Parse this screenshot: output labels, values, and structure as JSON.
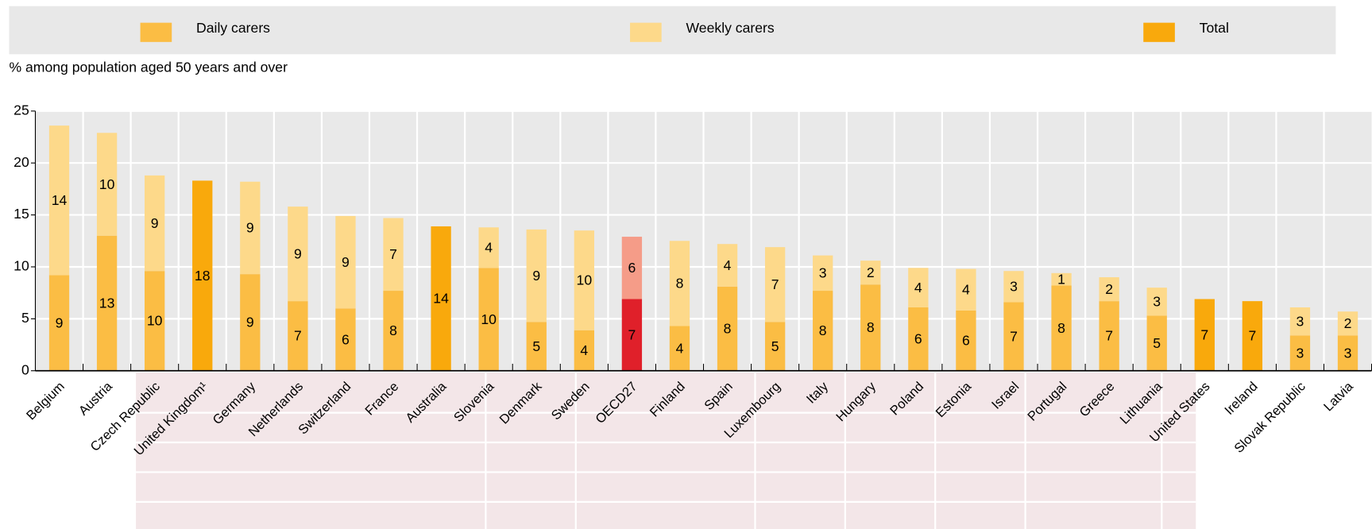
{
  "chart_data": {
    "type": "stacked_bar",
    "subtitle": "% among population aged 50 years and over",
    "categories": [
      "Belgium",
      "Austria",
      "Czech Republic",
      "United Kingdom¹",
      "Germany",
      "Netherlands",
      "Switzerland",
      "France",
      "Australia",
      "Slovenia",
      "Denmark",
      "Sweden",
      "OECD27",
      "Finland",
      "Spain",
      "Luxembourg",
      "Italy",
      "Hungary",
      "Poland",
      "Estonia",
      "Israel",
      "Portugal",
      "Greece",
      "Lithuania",
      "United States",
      "Ireland",
      "Slovak Republic",
      "Latvia"
    ],
    "series": [
      {
        "name": "Daily carers",
        "color": "#fbbd44",
        "highlight_color": "#e0202a",
        "values": [
          9.2,
          13.0,
          9.6,
          null,
          9.3,
          6.7,
          6.0,
          7.7,
          null,
          9.9,
          4.7,
          3.9,
          6.9,
          4.3,
          8.1,
          4.7,
          7.7,
          8.3,
          6.1,
          5.8,
          6.6,
          8.2,
          6.7,
          5.3,
          null,
          null,
          3.4,
          3.4
        ],
        "value_labels": [
          "9",
          "13",
          "10",
          null,
          "9",
          "7",
          "6",
          "8",
          null,
          "10",
          "5",
          "4",
          "7",
          "4",
          "8",
          "5",
          "8",
          "8",
          "6",
          "6",
          "7",
          "8",
          "7",
          "5",
          null,
          null,
          "3",
          "3"
        ]
      },
      {
        "name": "Weekly carers",
        "color": "#fdd98a",
        "highlight_color": "#f59c88",
        "values": [
          14.4,
          9.9,
          9.2,
          null,
          8.9,
          9.1,
          8.9,
          7.0,
          null,
          3.9,
          8.9,
          9.6,
          6.0,
          8.2,
          4.1,
          7.2,
          3.4,
          2.3,
          3.8,
          4.0,
          3.0,
          1.2,
          2.3,
          2.7,
          null,
          null,
          2.7,
          2.3
        ],
        "value_labels": [
          "14",
          "10",
          "9",
          null,
          "9",
          "9",
          "9",
          "7",
          null,
          "4",
          "9",
          "10",
          "6",
          "8",
          "4",
          "7",
          "3",
          "2",
          "4",
          "4",
          "3",
          "1",
          "2",
          "3",
          null,
          null,
          "3",
          "2"
        ]
      },
      {
        "name": "Total",
        "color": "#f9a90c",
        "highlight_color": "#f9a90c",
        "values": [
          null,
          null,
          null,
          18.3,
          null,
          null,
          null,
          null,
          13.9,
          null,
          null,
          null,
          null,
          null,
          null,
          null,
          null,
          null,
          null,
          null,
          null,
          null,
          null,
          null,
          6.9,
          6.7,
          null,
          null
        ],
        "value_labels": [
          null,
          null,
          null,
          "18",
          null,
          null,
          null,
          null,
          "14",
          null,
          null,
          null,
          null,
          null,
          null,
          null,
          null,
          null,
          null,
          null,
          null,
          null,
          null,
          null,
          "7",
          "7",
          null,
          null
        ]
      }
    ],
    "highlight_category": "OECD27",
    "ylim": [
      0,
      25
    ],
    "yticks": [
      0,
      5,
      10,
      15,
      20,
      25
    ],
    "grid": true,
    "legend": "top"
  }
}
